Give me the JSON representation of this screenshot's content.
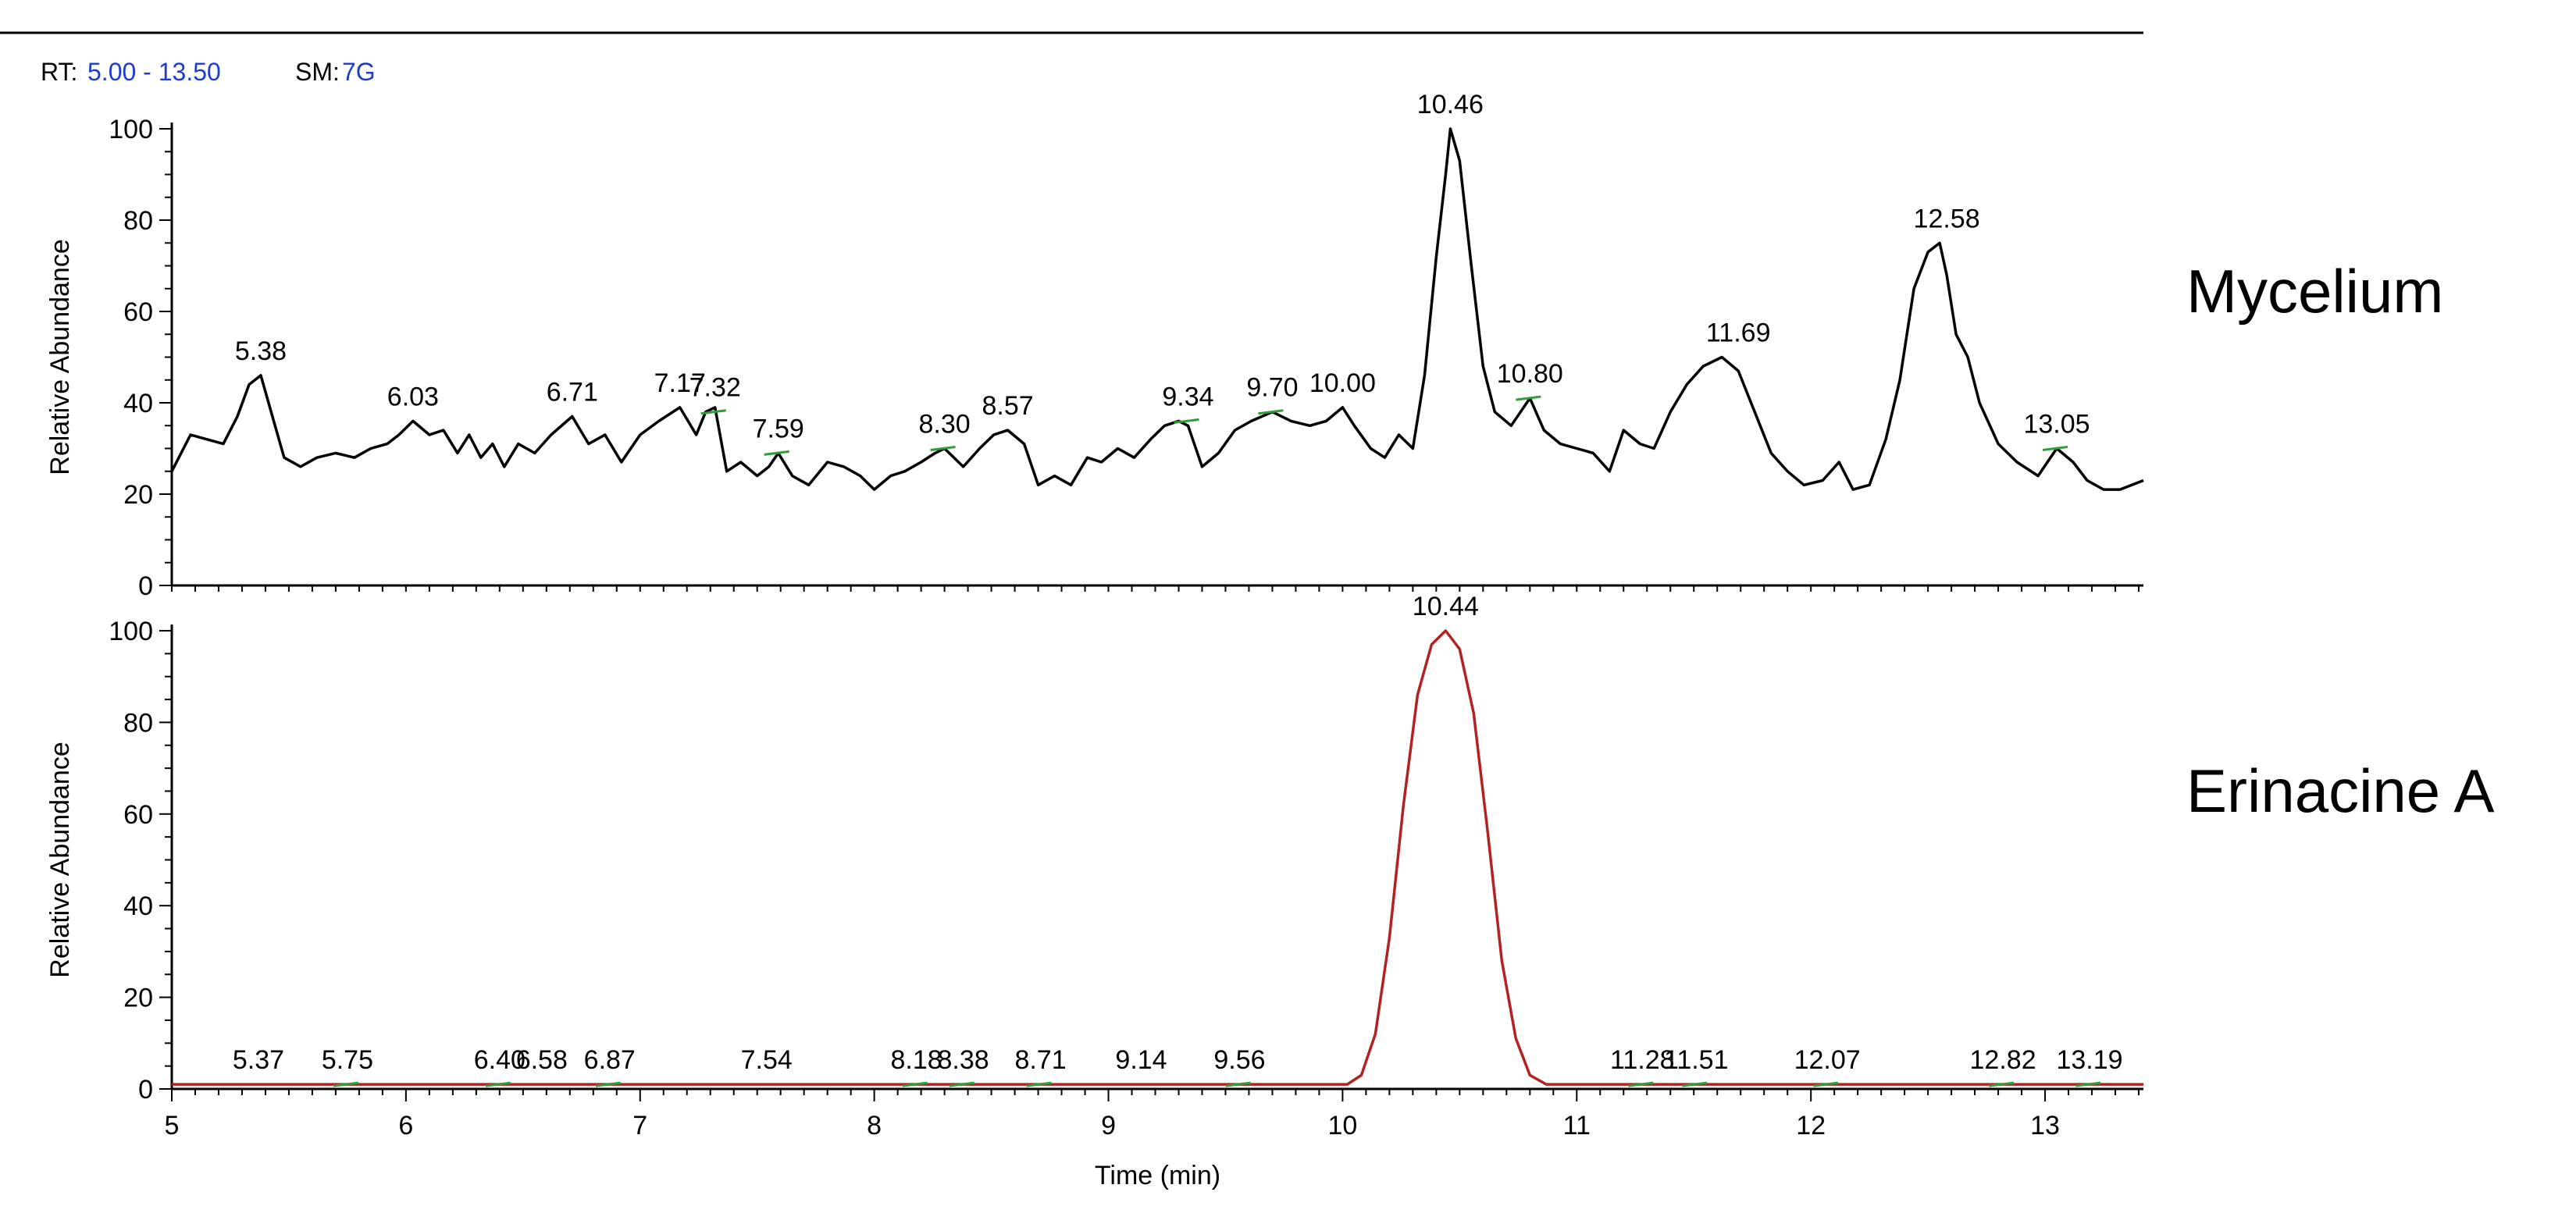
{
  "header": {
    "rt_label": "RT:",
    "rt_value": "5.00 - 13.50",
    "sm_label": "SM:",
    "sm_value": "7G",
    "value_color": "#1f3ccc"
  },
  "chart_data": [
    {
      "type": "line",
      "name": "Mycelium",
      "color": "#000000",
      "ylabel": "Relative Abundance",
      "ylim": [
        0,
        100
      ],
      "yticks": [
        0,
        20,
        40,
        60,
        80,
        100
      ],
      "xlim": [
        5.0,
        13.42
      ],
      "xticks": [
        5,
        6,
        7,
        8,
        9,
        10,
        11,
        12,
        13
      ],
      "show_xticks": false,
      "series": [
        {
          "x": [
            5.0,
            5.08,
            5.15,
            5.22,
            5.28,
            5.33,
            5.38,
            5.43,
            5.48,
            5.55,
            5.62,
            5.7,
            5.78,
            5.85,
            5.92,
            5.97,
            6.03,
            6.1,
            6.16,
            6.22,
            6.27,
            6.32,
            6.37,
            6.42,
            6.48,
            6.55,
            6.62,
            6.71,
            6.78,
            6.85,
            6.92,
            7.0,
            7.08,
            7.17,
            7.24,
            7.28,
            7.32,
            7.37,
            7.43,
            7.5,
            7.55,
            7.59,
            7.65,
            7.72,
            7.8,
            7.87,
            7.94,
            8.0,
            8.07,
            8.13,
            8.2,
            8.26,
            8.3,
            8.38,
            8.45,
            8.51,
            8.57,
            8.64,
            8.7,
            8.77,
            8.84,
            8.91,
            8.97,
            9.04,
            9.11,
            9.18,
            9.24,
            9.3,
            9.34,
            9.4,
            9.47,
            9.54,
            9.61,
            9.7,
            9.78,
            9.86,
            9.93,
            10.0,
            10.05,
            10.12,
            10.18,
            10.24,
            10.3,
            10.35,
            10.4,
            10.44,
            10.46,
            10.5,
            10.55,
            10.6,
            10.65,
            10.72,
            10.8,
            10.86,
            10.93,
            11.0,
            11.07,
            11.14,
            11.2,
            11.27,
            11.33,
            11.4,
            11.47,
            11.54,
            11.62,
            11.69,
            11.76,
            11.83,
            11.9,
            11.97,
            12.05,
            12.12,
            12.18,
            12.25,
            12.32,
            12.38,
            12.44,
            12.5,
            12.55,
            12.58,
            12.62,
            12.67,
            12.72,
            12.8,
            12.88,
            12.97,
            13.05,
            13.12,
            13.18,
            13.25,
            13.32,
            13.42
          ],
          "y": [
            25,
            33,
            32,
            31,
            37,
            44,
            46,
            37,
            28,
            26,
            28,
            29,
            28,
            30,
            31,
            33,
            36,
            33,
            34,
            29,
            33,
            28,
            31,
            26,
            31,
            29,
            33,
            37,
            31,
            33,
            27,
            33,
            36,
            39,
            33,
            38,
            39,
            25,
            27,
            24,
            26,
            29,
            24,
            22,
            27,
            26,
            24,
            21,
            24,
            25,
            27,
            29,
            30,
            26,
            30,
            33,
            34,
            31,
            22,
            24,
            22,
            28,
            27,
            30,
            28,
            32,
            35,
            36,
            35,
            26,
            29,
            34,
            36,
            38,
            36,
            35,
            36,
            39,
            35,
            30,
            28,
            33,
            30,
            46,
            72,
            90,
            100,
            93,
            70,
            48,
            38,
            35,
            41,
            34,
            31,
            30,
            29,
            25,
            34,
            31,
            30,
            38,
            44,
            48,
            50,
            47,
            38,
            29,
            25,
            22,
            23,
            27,
            21,
            22,
            32,
            45,
            65,
            73,
            75,
            68,
            55,
            50,
            40,
            31,
            27,
            24,
            30,
            27,
            23,
            21,
            21,
            23
          ]
        }
      ],
      "peak_labels": [
        {
          "x": 5.38,
          "y": 46,
          "text": "5.38"
        },
        {
          "x": 6.03,
          "y": 36,
          "text": "6.03"
        },
        {
          "x": 6.71,
          "y": 37,
          "text": "6.71"
        },
        {
          "x": 7.17,
          "y": 39,
          "text": "7.17"
        },
        {
          "x": 7.32,
          "y": 38,
          "text": "7.32",
          "mark": true
        },
        {
          "x": 7.59,
          "y": 29,
          "text": "7.59",
          "mark": true
        },
        {
          "x": 8.3,
          "y": 30,
          "text": "8.30",
          "mark": true
        },
        {
          "x": 8.57,
          "y": 34,
          "text": "8.57"
        },
        {
          "x": 9.34,
          "y": 36,
          "text": "9.34",
          "mark": true
        },
        {
          "x": 9.7,
          "y": 38,
          "text": "9.70",
          "mark": true
        },
        {
          "x": 10.0,
          "y": 39,
          "text": "10.00"
        },
        {
          "x": 10.46,
          "y": 100,
          "text": "10.46"
        },
        {
          "x": 10.8,
          "y": 41,
          "text": "10.80",
          "mark": true
        },
        {
          "x": 11.69,
          "y": 50,
          "text": "11.69"
        },
        {
          "x": 12.58,
          "y": 75,
          "text": "12.58"
        },
        {
          "x": 13.05,
          "y": 30,
          "text": "13.05",
          "mark": true
        }
      ],
      "side_label": "Mycelium"
    },
    {
      "type": "line",
      "name": "Erinacine A",
      "color": "#b22222",
      "ylabel": "Relative Abundance",
      "xlabel": "Time (min)",
      "ylim": [
        0,
        100
      ],
      "yticks": [
        0,
        20,
        40,
        60,
        80,
        100
      ],
      "xlim": [
        5.0,
        13.42
      ],
      "xticks": [
        5,
        6,
        7,
        8,
        9,
        10,
        11,
        12,
        13
      ],
      "show_xticks": true,
      "series": [
        {
          "x": [
            5.0,
            9.95,
            10.02,
            10.08,
            10.14,
            10.2,
            10.26,
            10.32,
            10.38,
            10.44,
            10.5,
            10.56,
            10.62,
            10.68,
            10.74,
            10.8,
            10.87,
            10.95,
            13.42
          ],
          "y": [
            1,
            1,
            1,
            3,
            12,
            33,
            62,
            86,
            97,
            100,
            96,
            82,
            56,
            28,
            11,
            3,
            1,
            1,
            1
          ]
        }
      ],
      "peak_labels": [
        {
          "x": 5.37,
          "y": 1,
          "text": "5.37"
        },
        {
          "x": 5.75,
          "y": 1,
          "text": "5.75",
          "mark": true
        },
        {
          "x": 6.4,
          "y": 1,
          "text": "6.40",
          "mark": true
        },
        {
          "x": 6.58,
          "y": 1,
          "text": "6.58"
        },
        {
          "x": 6.87,
          "y": 1,
          "text": "6.87",
          "mark": true
        },
        {
          "x": 7.54,
          "y": 1,
          "text": "7.54"
        },
        {
          "x": 8.18,
          "y": 1,
          "text": "8.18",
          "mark": true
        },
        {
          "x": 8.38,
          "y": 1,
          "text": "8.38",
          "mark": true
        },
        {
          "x": 8.71,
          "y": 1,
          "text": "8.71",
          "mark": true
        },
        {
          "x": 9.14,
          "y": 1,
          "text": "9.14"
        },
        {
          "x": 9.56,
          "y": 1,
          "text": "9.56",
          "mark": true
        },
        {
          "x": 10.44,
          "y": 100,
          "text": "10.44"
        },
        {
          "x": 11.28,
          "y": 1,
          "text": "11.28",
          "mark": true
        },
        {
          "x": 11.51,
          "y": 1,
          "text": "11.51",
          "mark": true
        },
        {
          "x": 12.07,
          "y": 1,
          "text": "12.07",
          "mark": true
        },
        {
          "x": 12.82,
          "y": 1,
          "text": "12.82",
          "mark": true
        },
        {
          "x": 13.19,
          "y": 1,
          "text": "13.19",
          "mark": true
        }
      ],
      "side_label": "Erinacine A"
    }
  ],
  "marker_color": "#2e9e3a"
}
